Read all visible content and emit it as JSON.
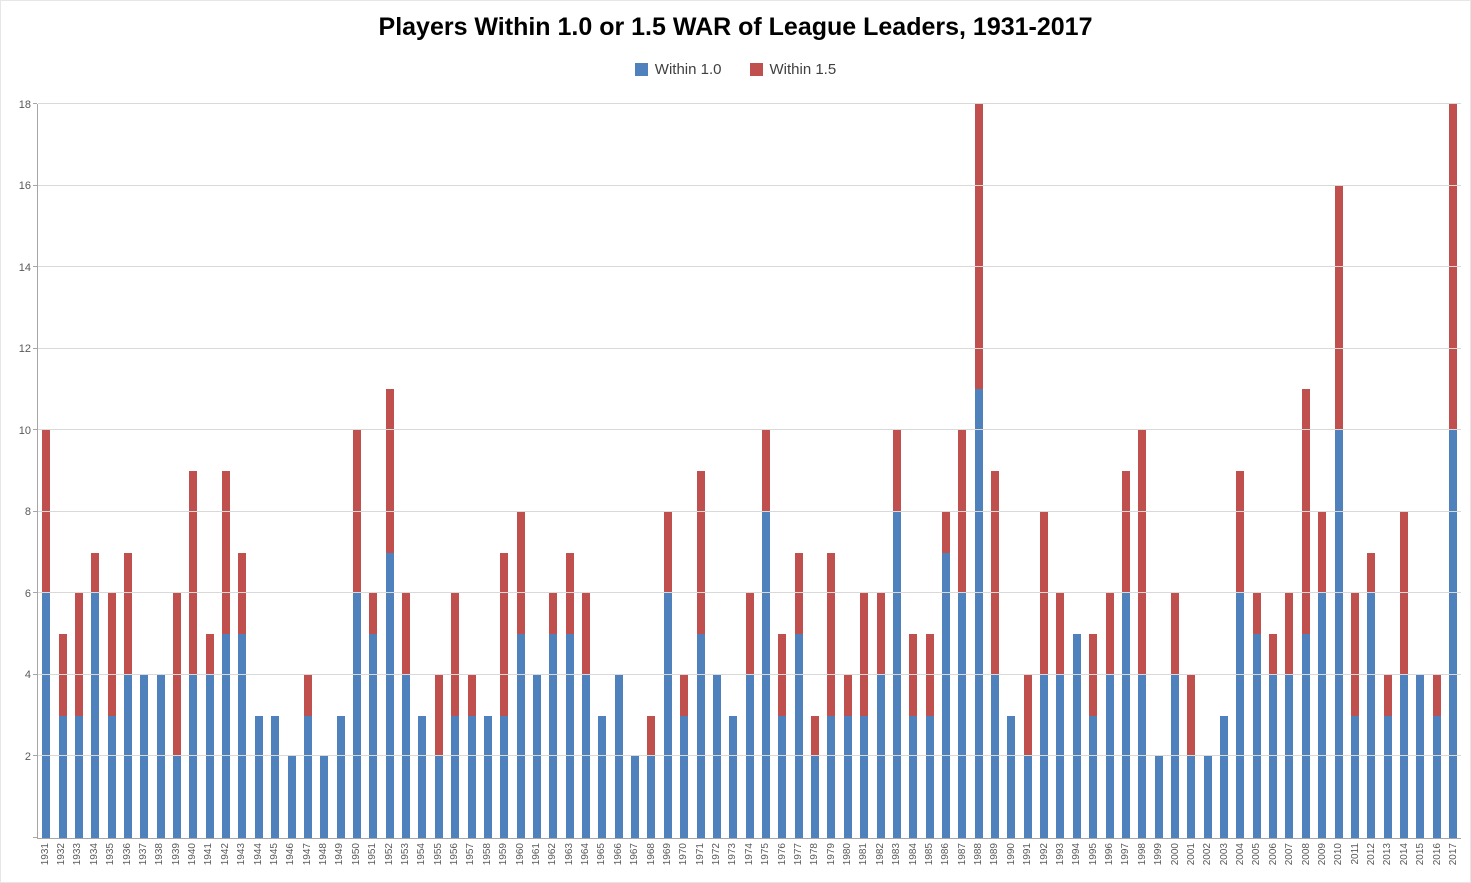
{
  "title": "Players Within 1.0 or 1.5 WAR of League Leaders, 1931-2017",
  "legend": [
    {
      "label": "Within 1.0",
      "color": "#4F81BD"
    },
    {
      "label": "Within 1.5",
      "color": "#C0504D"
    }
  ],
  "chart_data": {
    "type": "bar",
    "stacked": true,
    "title": "Players Within 1.0 or 1.5 WAR of League Leaders, 1931-2017",
    "xlabel": "",
    "ylabel": "",
    "ylim": [
      0,
      18
    ],
    "ytick_step": 2,
    "grid": true,
    "legend_position": "top-center",
    "categories": [
      "1931",
      "1932",
      "1933",
      "1934",
      "1935",
      "1936",
      "1937",
      "1938",
      "1939",
      "1940",
      "1941",
      "1942",
      "1943",
      "1944",
      "1945",
      "1946",
      "1947",
      "1948",
      "1949",
      "1950",
      "1951",
      "1952",
      "1953",
      "1954",
      "1955",
      "1956",
      "1957",
      "1958",
      "1959",
      "1960",
      "1961",
      "1962",
      "1963",
      "1964",
      "1965",
      "1966",
      "1967",
      "1968",
      "1969",
      "1970",
      "1971",
      "1972",
      "1973",
      "1974",
      "1975",
      "1976",
      "1977",
      "1978",
      "1979",
      "1980",
      "1981",
      "1982",
      "1983",
      "1984",
      "1985",
      "1986",
      "1987",
      "1988",
      "1989",
      "1990",
      "1991",
      "1992",
      "1993",
      "1994",
      "1995",
      "1996",
      "1997",
      "1998",
      "1999",
      "2000",
      "2001",
      "2002",
      "2003",
      "2004",
      "2005",
      "2006",
      "2007",
      "2008",
      "2009",
      "2010",
      "2011",
      "2012",
      "2013",
      "2014",
      "2015",
      "2016",
      "2017"
    ],
    "series": [
      {
        "name": "Within 1.0",
        "color": "#4F81BD",
        "values": [
          6,
          3,
          3,
          6,
          3,
          4,
          4,
          4,
          2,
          4,
          4,
          5,
          5,
          3,
          3,
          2,
          3,
          2,
          3,
          6,
          5,
          7,
          4,
          3,
          2,
          3,
          3,
          3,
          3,
          5,
          4,
          5,
          5,
          4,
          3,
          4,
          2,
          2,
          6,
          3,
          5,
          4,
          3,
          4,
          8,
          3,
          5,
          2,
          3,
          3,
          3,
          4,
          8,
          3,
          3,
          7,
          6,
          11,
          4,
          3,
          2,
          4,
          4,
          5,
          3,
          4,
          6,
          4,
          2,
          4,
          2,
          2,
          3,
          6,
          5,
          4,
          4,
          5,
          6,
          10,
          3,
          6,
          3,
          4,
          4,
          3,
          10
        ]
      },
      {
        "name": "Within 1.5",
        "color": "#C0504D",
        "note": "stacked increment above Within 1.0; total bar height = count within 1.5 WAR",
        "values": [
          4,
          2,
          3,
          1,
          3,
          3,
          0,
          0,
          4,
          5,
          1,
          4,
          2,
          0,
          0,
          0,
          1,
          0,
          0,
          4,
          1,
          4,
          2,
          0,
          2,
          3,
          1,
          0,
          4,
          3,
          0,
          1,
          2,
          2,
          0,
          0,
          0,
          1,
          2,
          1,
          4,
          0,
          0,
          2,
          2,
          2,
          2,
          1,
          4,
          1,
          3,
          2,
          2,
          2,
          2,
          1,
          4,
          7,
          5,
          0,
          2,
          4,
          2,
          0,
          2,
          2,
          3,
          6,
          0,
          2,
          2,
          0,
          0,
          3,
          1,
          1,
          2,
          6,
          2,
          6,
          3,
          1,
          1,
          4,
          0,
          1,
          8
        ]
      }
    ]
  }
}
